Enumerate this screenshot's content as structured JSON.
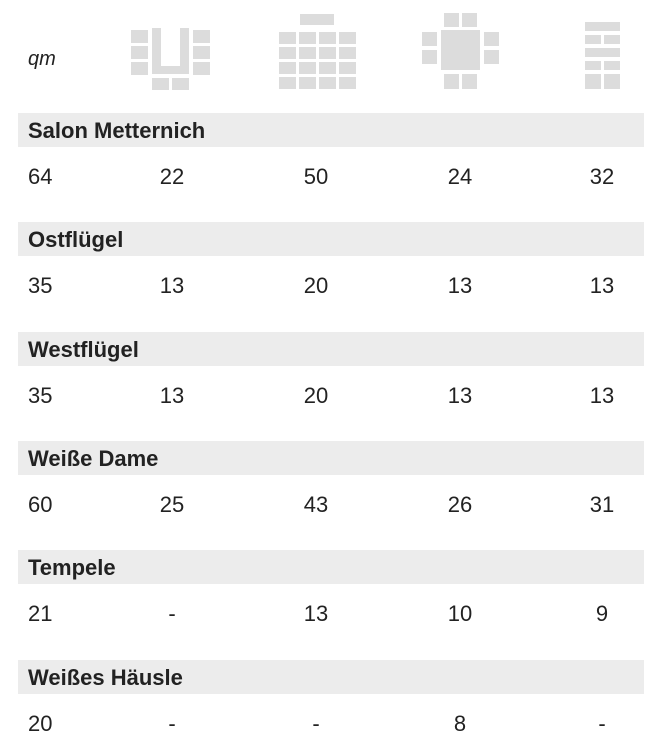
{
  "table": {
    "unit": "qm",
    "sections": [
      {
        "name": "Salon Metternich",
        "values": [
          "64",
          "22",
          "50",
          "24",
          "32"
        ]
      },
      {
        "name": "Ostflügel",
        "values": [
          "35",
          "13",
          "20",
          "13",
          "13"
        ]
      },
      {
        "name": "Westflügel",
        "values": [
          "35",
          "13",
          "20",
          "13",
          "13"
        ]
      },
      {
        "name": "Weiße Dame",
        "values": [
          "60",
          "25",
          "43",
          "26",
          "31"
        ]
      },
      {
        "name": "Tempele",
        "values": [
          "21",
          "-",
          "13",
          "10",
          "9"
        ]
      },
      {
        "name": "Weißes Häusle",
        "values": [
          "20",
          "-",
          "-",
          "8",
          "-"
        ]
      }
    ]
  }
}
